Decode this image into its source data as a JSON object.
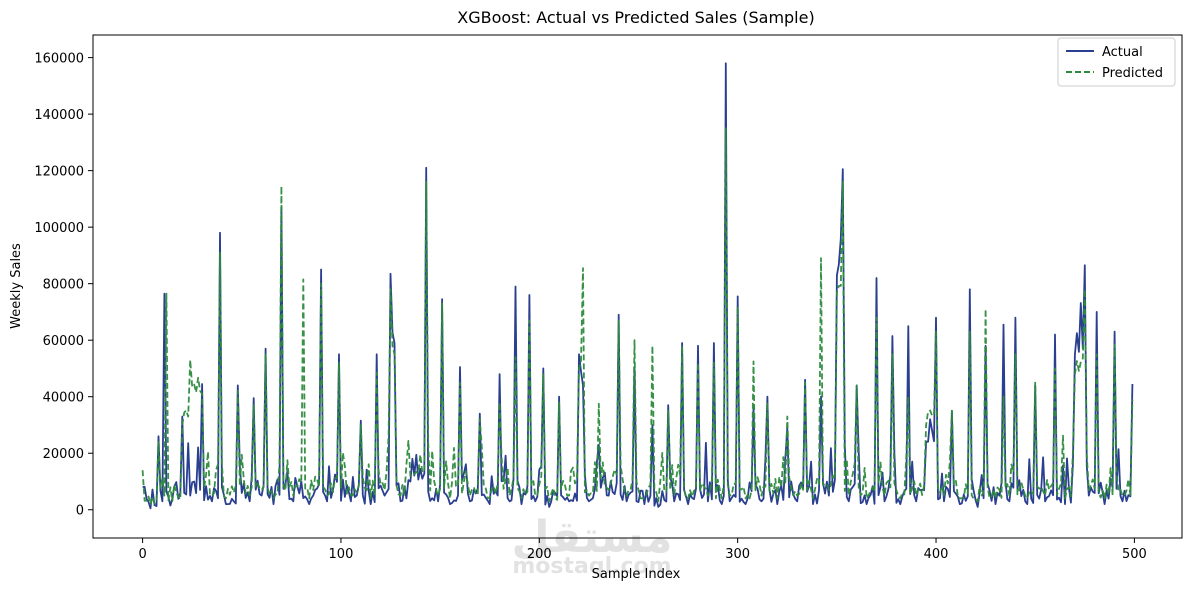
{
  "watermark": {
    "main": "مستقل",
    "sub": "mostaql.com"
  },
  "chart_data": {
    "type": "line",
    "title": "XGBoost: Actual vs Predicted Sales (Sample)",
    "xlabel": "Sample Index",
    "ylabel": "Weekly Sales",
    "xlim": [
      -25,
      524
    ],
    "ylim": [
      -10000,
      168000
    ],
    "xticks": [
      0,
      100,
      200,
      300,
      400,
      500
    ],
    "xtick_labels": [
      "0",
      "100",
      "200",
      "300",
      "400",
      "500"
    ],
    "yticks": [
      0,
      20000,
      40000,
      60000,
      80000,
      100000,
      120000,
      140000,
      160000
    ],
    "ytick_labels": [
      "0",
      "20000",
      "40000",
      "60000",
      "80000",
      "100000",
      "120000",
      "140000",
      "160000"
    ],
    "grid": false,
    "legend_position": "top-right",
    "n_points": 500,
    "series": [
      {
        "name": "Actual",
        "color": "#2a3f8f",
        "style": "solid",
        "x": [
          0,
          4,
          8,
          10,
          11,
          14,
          20,
          24,
          30,
          35,
          39,
          42,
          48,
          54,
          56,
          60,
          62,
          66,
          70,
          76,
          80,
          84,
          86,
          90,
          93,
          99,
          105,
          110,
          115,
          118,
          122,
          125,
          127,
          130,
          135,
          143,
          149,
          151,
          155,
          160,
          165,
          170,
          175,
          180,
          185,
          188,
          191,
          195,
          198,
          202,
          205,
          210,
          215,
          220,
          222,
          225,
          230,
          235,
          240,
          244,
          248,
          253,
          257,
          260,
          265,
          268,
          272,
          275,
          280,
          285,
          288,
          292,
          294,
          296,
          300,
          304,
          308,
          312,
          315,
          320,
          325,
          330,
          334,
          338,
          342,
          346,
          350,
          353,
          356,
          360,
          365,
          370,
          374,
          378,
          382,
          386,
          390,
          395,
          400,
          404,
          408,
          412,
          417,
          421,
          425,
          430,
          434,
          437,
          440,
          446,
          450,
          455,
          460,
          465,
          470,
          475,
          477,
          481,
          485,
          490,
          494,
          499
        ],
        "y": [
          8000,
          500,
          26000,
          3000,
          76500,
          1500,
          33000,
          5000,
          44500,
          3000,
          98000,
          2000,
          44000,
          3000,
          39500,
          5000,
          57000,
          2000,
          107000,
          3000,
          10000,
          2000,
          5000,
          85000,
          3000,
          55000,
          3000,
          31500,
          2000,
          55000,
          5000,
          83500,
          59000,
          3000,
          10000,
          121000,
          3000,
          74500,
          2000,
          50500,
          3000,
          34000,
          2000,
          48000,
          3000,
          79000,
          2000,
          76000,
          3000,
          50000,
          1000,
          40000,
          3000,
          55000,
          44000,
          3000,
          23000,
          5000,
          69000,
          3000,
          50500,
          2000,
          30000,
          1000,
          37000,
          3000,
          59000,
          2000,
          58000,
          3000,
          59000,
          2000,
          158000,
          3000,
          75500,
          2000,
          36000,
          3000,
          40000,
          2000,
          29000,
          3000,
          46000,
          2000,
          40000,
          5000,
          83000,
          120500,
          3000,
          44000,
          2000,
          82000,
          3000,
          61500,
          2000,
          65000,
          3000,
          24000,
          68000,
          3000,
          35000,
          2000,
          78000,
          1000,
          58000,
          2000,
          65500,
          3000,
          68000,
          2000,
          44000,
          3000,
          62000,
          2000,
          55000,
          86500,
          5000,
          70000,
          2000,
          63000,
          3000,
          44500
        ]
      },
      {
        "name": "Predicted",
        "color": "#2e8b3e",
        "style": "dashed",
        "x": [
          0,
          4,
          8,
          11,
          12,
          15,
          20,
          24,
          30,
          35,
          39,
          42,
          48,
          54,
          56,
          60,
          62,
          66,
          70,
          76,
          81,
          84,
          86,
          90,
          93,
          99,
          105,
          110,
          115,
          118,
          122,
          125,
          127,
          130,
          135,
          143,
          149,
          151,
          155,
          160,
          165,
          170,
          175,
          180,
          185,
          188,
          191,
          195,
          198,
          202,
          205,
          210,
          215,
          220,
          222,
          225,
          230,
          235,
          240,
          244,
          248,
          253,
          257,
          260,
          265,
          268,
          272,
          275,
          280,
          285,
          288,
          292,
          294,
          296,
          300,
          304,
          308,
          312,
          315,
          320,
          325,
          330,
          334,
          338,
          342,
          346,
          350,
          353,
          356,
          360,
          365,
          370,
          374,
          378,
          382,
          386,
          390,
          395,
          400,
          404,
          408,
          412,
          417,
          421,
          425,
          430,
          434,
          437,
          440,
          446,
          450,
          455,
          460,
          465,
          470,
          475,
          477,
          481,
          485,
          490,
          494,
          499
        ],
        "y": [
          14000,
          2000,
          24000,
          5000,
          76500,
          3000,
          30000,
          53000,
          41000,
          5000,
          91000,
          4000,
          42000,
          5000,
          37000,
          7000,
          55000,
          4000,
          114500,
          5000,
          81500,
          4000,
          7000,
          80000,
          5000,
          52000,
          5000,
          30000,
          4000,
          48500,
          7000,
          78000,
          55000,
          5000,
          12000,
          116000,
          5000,
          73000,
          4000,
          45000,
          5000,
          32000,
          4000,
          38000,
          5000,
          54000,
          4000,
          67000,
          5000,
          48000,
          3000,
          38000,
          5000,
          50000,
          85500,
          5000,
          37500,
          7000,
          67000,
          5000,
          60000,
          4000,
          58000,
          3000,
          35000,
          5000,
          58000,
          4000,
          52000,
          5000,
          52000,
          4000,
          135000,
          5000,
          72000,
          4000,
          52500,
          5000,
          38000,
          4000,
          33000,
          5000,
          45000,
          4000,
          89000,
          7000,
          77000,
          116000,
          5000,
          44000,
          4000,
          68000,
          5000,
          55000,
          4000,
          40000,
          5000,
          30000,
          63000,
          5000,
          35000,
          4000,
          63000,
          3000,
          71000,
          4000,
          40000,
          5000,
          55000,
          4000,
          45000,
          5000,
          50000,
          4000,
          48000,
          78000,
          7000,
          55000,
          4000,
          58500,
          5000,
          39000
        ]
      }
    ]
  }
}
